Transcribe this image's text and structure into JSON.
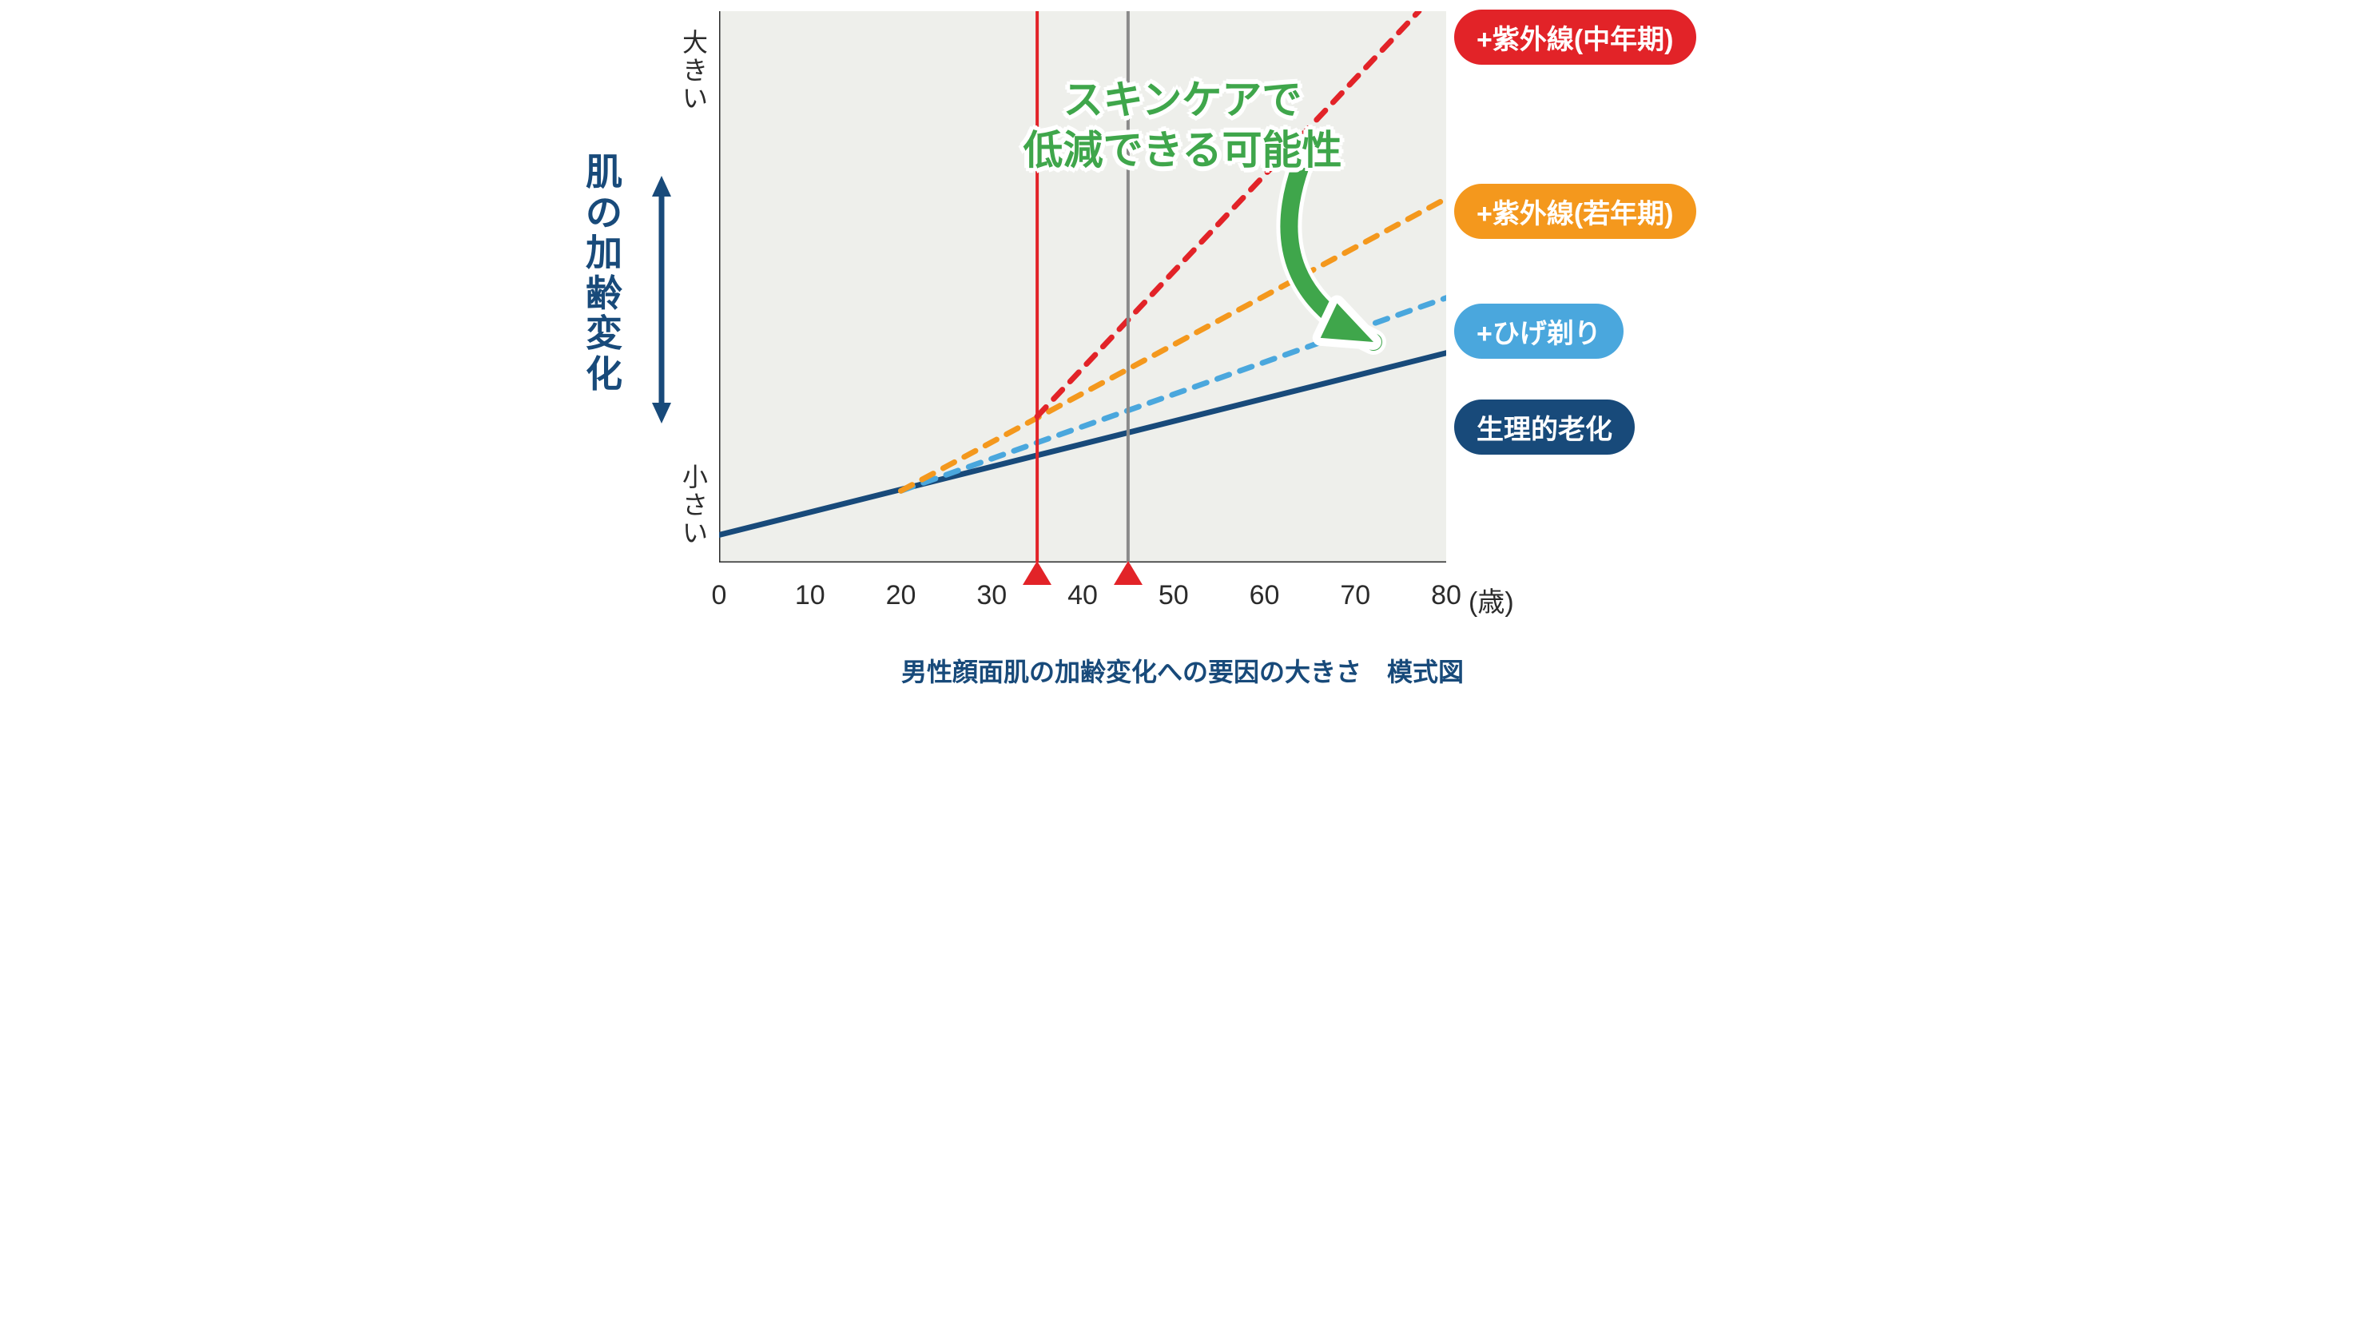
{
  "chart": {
    "type": "line",
    "background_color": "#ffffff",
    "plot_bg_color": "#eeefeb",
    "axis_color": "#2b2b2b",
    "xlim": [
      0,
      80
    ],
    "x_ticks": [
      0,
      10,
      20,
      30,
      40,
      50,
      60,
      70,
      80
    ],
    "x_unit_label": "(歳)",
    "x_tick_fontsize": 34,
    "x_tick_color": "#2b2b2b",
    "y_title": "肌の加齢変化",
    "y_title_color": "#184a7a",
    "y_title_fontsize": 46,
    "y_max_label": "大きい",
    "y_min_label": "小さい",
    "y_label_color": "#2b2b2b",
    "y_label_fontsize": 32,
    "y_arrow_color": "#184a7a",
    "vertical_markers": [
      {
        "x": 35,
        "line_color": "#e22328",
        "triangle_color": "#e22328",
        "line_width": 4
      },
      {
        "x": 45,
        "line_color": "#8a8a8a",
        "triangle_color": "#e22328",
        "line_width": 4
      }
    ],
    "series": [
      {
        "id": "physio",
        "label": "生理的老化",
        "legend_bg": "#184a7a",
        "legend_text": "#ffffff",
        "color": "#184a7a",
        "dash": "solid",
        "line_width": 7,
        "points": [
          [
            0,
            0.05
          ],
          [
            80,
            0.38
          ]
        ]
      },
      {
        "id": "shaving",
        "label": "+ひげ剃り",
        "legend_bg": "#4aa7dd",
        "legend_text": "#ffffff",
        "color": "#4aa7dd",
        "dash": "dashed",
        "line_width": 7,
        "points": [
          [
            20,
            0.13
          ],
          [
            80,
            0.48
          ]
        ]
      },
      {
        "id": "uv_young",
        "label": "+紫外線(若年期)",
        "legend_bg": "#f4981d",
        "legend_text": "#ffffff",
        "color": "#f4981d",
        "dash": "dashed",
        "line_width": 7,
        "points": [
          [
            20,
            0.13
          ],
          [
            80,
            0.66
          ]
        ]
      },
      {
        "id": "uv_mid",
        "label": "+紫外線(中年期)",
        "legend_bg": "#e22328",
        "legend_text": "#ffffff",
        "color": "#e22328",
        "dash": "dashed",
        "line_width": 7,
        "points": [
          [
            35,
            0.265
          ],
          [
            77,
            1.0
          ]
        ]
      }
    ],
    "legend_positions_y": {
      "uv_mid": 12,
      "uv_young": 230,
      "shaving": 380,
      "physio": 500
    },
    "annotation": {
      "line1": "スキンケアで",
      "line2": "低減できる可能性",
      "color": "#3fa64b",
      "outline_color": "#ffffff",
      "fontsize": 50
    },
    "arrow": {
      "color": "#3fa64b",
      "outline_color": "#ffffff",
      "outline_width": 10,
      "start": [
        64,
        0.72
      ],
      "end": [
        72,
        0.4
      ],
      "curvature": 0.45
    },
    "caption": "男性顔面肌の加齢変化への要因の大きさ　模式図",
    "caption_color": "#184a7a",
    "caption_fontsize": 32
  }
}
